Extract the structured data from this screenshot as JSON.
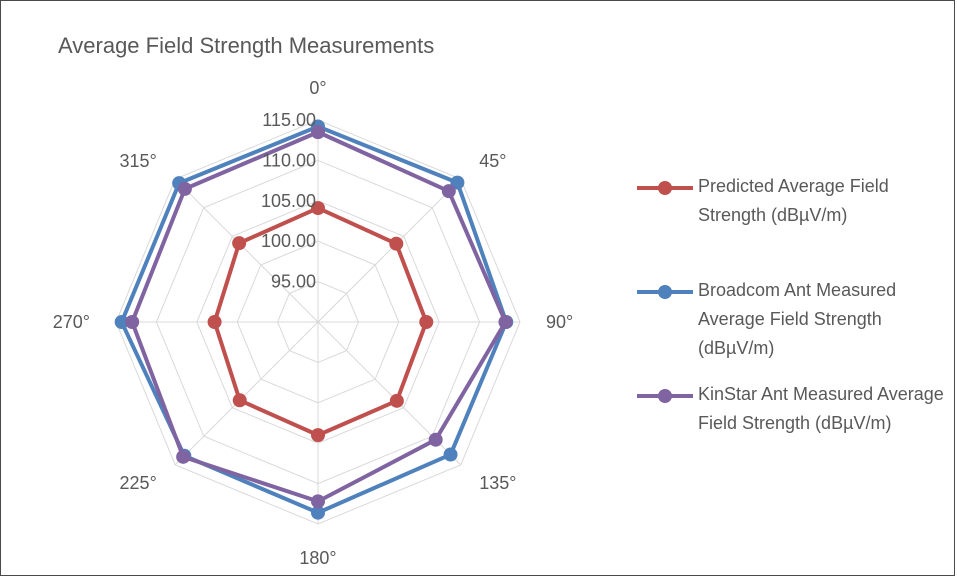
{
  "chart_data": {
    "type": "radar",
    "title": "Average Field Strength Measurements",
    "categories": [
      "0°",
      "45°",
      "90°",
      "135°",
      "180°",
      "225°",
      "270°",
      "315°"
    ],
    "radial_axis": {
      "range": [
        90,
        115
      ],
      "ticks": [
        95,
        100,
        105,
        110,
        115
      ],
      "tick_labels": [
        "95.00",
        "100.00",
        "105.00",
        "110.00",
        "115.00"
      ]
    },
    "series": [
      {
        "name": "Predicted Average Field Strength (dBµV/m)",
        "color": "#c0504d",
        "values": [
          104.1,
          103.7,
          103.4,
          103.8,
          104.0,
          103.7,
          102.8,
          103.8
        ]
      },
      {
        "name": "Broadcom Ant Measured Average Field Strength (dBµV/m)",
        "color": "#4f81bd",
        "values": [
          114.2,
          114.4,
          113.3,
          113.2,
          113.6,
          113.4,
          114.3,
          114.3
        ]
      },
      {
        "name": "KinStar Ant Measured Average Field Strength (dBµV/m)",
        "color": "#8064a2",
        "values": [
          113.5,
          112.9,
          113.2,
          110.6,
          112.2,
          113.6,
          113.0,
          113.3
        ]
      }
    ],
    "legend_position": "right",
    "grid": true
  }
}
